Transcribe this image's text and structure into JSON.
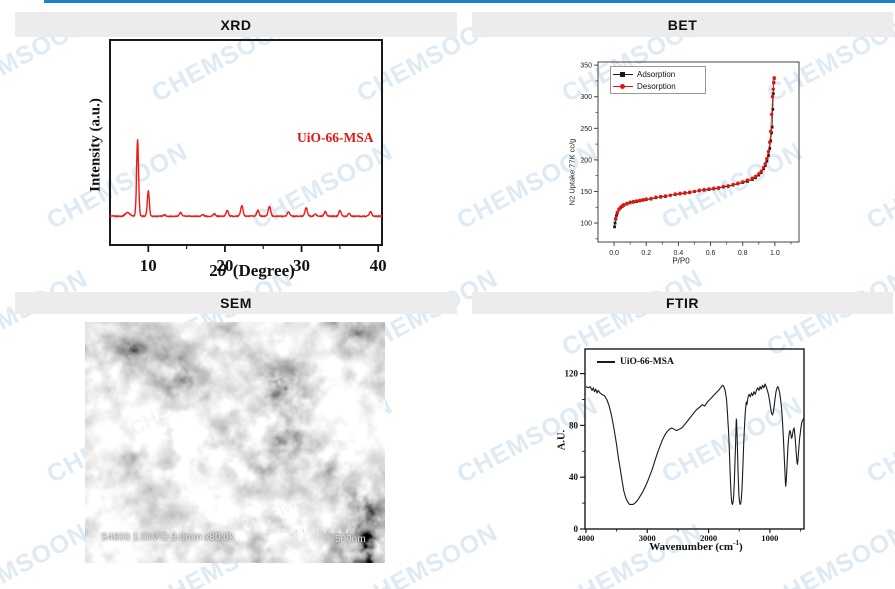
{
  "page": {
    "top_bar_color": "#1f83c2",
    "background": "#ffffff",
    "watermark": {
      "text": "CHEMSOON",
      "color": "rgba(62,132,190,0.17)"
    }
  },
  "panels": {
    "xrd": {
      "title": "XRD"
    },
    "bet": {
      "title": "BET"
    },
    "sem": {
      "title": "SEM",
      "info_label": "S4800 1.0kV-D 3.0mm x80.0k",
      "scale_label": "500nm"
    },
    "ftir": {
      "title": "FTIR"
    }
  },
  "chart_data": [
    {
      "id": "xrd",
      "type": "line",
      "title": "XRD",
      "sample_label": "UiO-66-MSA",
      "xlabel": "2θ (Degree)",
      "xlabel_parts": {
        "pre": "2",
        "theta": "θ",
        "post": "(Degree)"
      },
      "ylabel": "Intensity (a.u.)",
      "xlim": [
        5,
        40.5
      ],
      "xticks": [
        10,
        20,
        30,
        40
      ],
      "xticks_minor": [
        15,
        25,
        35
      ],
      "grid": false,
      "line_color": "#f41712",
      "label_color": "#e3170d",
      "peaks": [
        [
          7.3,
          0.05,
          0.3
        ],
        [
          8.6,
          1.0,
          0.13
        ],
        [
          10.0,
          0.33,
          0.13
        ],
        [
          12.1,
          0.02,
          0.15
        ],
        [
          14.2,
          0.05,
          0.15
        ],
        [
          17.1,
          0.02,
          0.15
        ],
        [
          18.6,
          0.03,
          0.15
        ],
        [
          20.3,
          0.08,
          0.15
        ],
        [
          22.2,
          0.14,
          0.16
        ],
        [
          24.3,
          0.08,
          0.15
        ],
        [
          25.8,
          0.13,
          0.16
        ],
        [
          28.3,
          0.06,
          0.15
        ],
        [
          30.6,
          0.11,
          0.16
        ],
        [
          31.8,
          0.03,
          0.14
        ],
        [
          33.1,
          0.06,
          0.15
        ],
        [
          35.0,
          0.08,
          0.15
        ],
        [
          36.2,
          0.04,
          0.14
        ],
        [
          39.0,
          0.06,
          0.16
        ]
      ]
    },
    {
      "id": "bet",
      "type": "scatter",
      "title": "BET",
      "xlabel": "P/P0",
      "ylabel": "N2 Uptake 77K cc/g",
      "xlim": [
        -0.1,
        1.15
      ],
      "ylim": [
        70,
        355
      ],
      "xticks": [
        "0.0",
        "0.2",
        "0.4",
        "0.6",
        "0.8",
        "1.0"
      ],
      "xticks_minor": [
        0.1,
        0.3,
        0.5,
        0.7,
        0.9,
        1.1
      ],
      "yticks": [
        100,
        150,
        200,
        250,
        300,
        350
      ],
      "yticks_minor": [
        75,
        125,
        175,
        225,
        275,
        325
      ],
      "legend_position": "top-left",
      "series": [
        {
          "name": "Adsorption",
          "marker": "square",
          "color": "#1a1a1a",
          "points": [
            [
              0.003,
              94
            ],
            [
              0.006,
              100
            ],
            [
              0.01,
              106
            ],
            [
              0.015,
              112
            ],
            [
              0.02,
              116
            ],
            [
              0.03,
              121
            ],
            [
              0.04,
              124
            ],
            [
              0.05,
              126
            ],
            [
              0.06,
              128
            ],
            [
              0.08,
              130
            ],
            [
              0.1,
              132
            ],
            [
              0.12,
              133
            ],
            [
              0.14,
              134
            ],
            [
              0.16,
              135
            ],
            [
              0.18,
              136
            ],
            [
              0.2,
              137
            ],
            [
              0.23,
              138
            ],
            [
              0.26,
              140
            ],
            [
              0.29,
              141
            ],
            [
              0.32,
              142
            ],
            [
              0.35,
              144
            ],
            [
              0.38,
              145
            ],
            [
              0.41,
              146
            ],
            [
              0.44,
              147
            ],
            [
              0.47,
              148
            ],
            [
              0.5,
              150
            ],
            [
              0.53,
              151
            ],
            [
              0.56,
              152
            ],
            [
              0.59,
              153
            ],
            [
              0.62,
              154
            ],
            [
              0.65,
              155
            ],
            [
              0.68,
              157
            ],
            [
              0.71,
              158
            ],
            [
              0.74,
              160
            ],
            [
              0.77,
              162
            ],
            [
              0.8,
              164
            ],
            [
              0.83,
              166
            ],
            [
              0.86,
              169
            ],
            [
              0.88,
              172
            ],
            [
              0.9,
              176
            ],
            [
              0.915,
              180
            ],
            [
              0.93,
              186
            ],
            [
              0.94,
              191
            ],
            [
              0.95,
              198
            ],
            [
              0.96,
              207
            ],
            [
              0.968,
              218
            ],
            [
              0.974,
              230
            ],
            [
              0.979,
              243
            ],
            [
              0.983,
              252
            ],
            [
              0.987,
              280
            ],
            [
              0.99,
              305
            ],
            [
              0.993,
              322
            ],
            [
              0.996,
              329
            ]
          ]
        },
        {
          "name": "Desorption",
          "marker": "circle",
          "color": "#e8140c",
          "points": [
            [
              0.996,
              330
            ],
            [
              0.993,
              323
            ],
            [
              0.99,
              312
            ],
            [
              0.985,
              300
            ],
            [
              0.98,
              272
            ],
            [
              0.974,
              245
            ],
            [
              0.968,
              228
            ],
            [
              0.96,
              213
            ],
            [
              0.95,
              202
            ],
            [
              0.94,
              194
            ],
            [
              0.93,
              188
            ],
            [
              0.915,
              182
            ],
            [
              0.9,
              178
            ],
            [
              0.88,
              174
            ],
            [
              0.86,
              171
            ],
            [
              0.83,
              168
            ],
            [
              0.8,
              165
            ],
            [
              0.77,
              163
            ],
            [
              0.74,
              161
            ],
            [
              0.71,
              159
            ],
            [
              0.68,
              158
            ],
            [
              0.65,
              156
            ],
            [
              0.62,
              155
            ],
            [
              0.59,
              154
            ],
            [
              0.56,
              153
            ],
            [
              0.53,
              152
            ],
            [
              0.5,
              150
            ],
            [
              0.47,
              149
            ],
            [
              0.44,
              148
            ],
            [
              0.41,
              147
            ],
            [
              0.38,
              146
            ],
            [
              0.35,
              144
            ],
            [
              0.32,
              143
            ],
            [
              0.29,
              142
            ],
            [
              0.26,
              141
            ],
            [
              0.23,
              139
            ],
            [
              0.2,
              138
            ],
            [
              0.18,
              137
            ],
            [
              0.16,
              136
            ],
            [
              0.14,
              135
            ],
            [
              0.12,
              134
            ],
            [
              0.1,
              133
            ],
            [
              0.08,
              131
            ],
            [
              0.06,
              129
            ],
            [
              0.05,
              127
            ],
            [
              0.04,
              125
            ],
            [
              0.03,
              122
            ],
            [
              0.02,
              117
            ],
            [
              0.01,
              107
            ]
          ]
        }
      ]
    },
    {
      "id": "ftir",
      "type": "line",
      "title": "FTIR",
      "legend": "UiO-66-MSA",
      "xlabel": "Wavenumber (cm-1)",
      "xlabel_parts": {
        "pre": "Wavenumber (cm",
        "sup": "-1",
        "post": ")"
      },
      "ylabel": "A.U.",
      "x_reversed": true,
      "xlim": [
        4015,
        444
      ],
      "ylim": [
        0,
        139
      ],
      "xticks": [
        4000,
        3000,
        2000,
        1000
      ],
      "xticks_minor": [
        3500,
        2500,
        1500,
        500
      ],
      "yticks": [
        0,
        40,
        80,
        120
      ],
      "yticks_minor": [
        20,
        60,
        100
      ],
      "line_color": "#1a1a1a",
      "points": [
        [
          4000,
          110
        ],
        [
          3960,
          109
        ],
        [
          3930,
          110
        ],
        [
          3900,
          107
        ],
        [
          3880,
          109
        ],
        [
          3860,
          106
        ],
        [
          3840,
          108
        ],
        [
          3820,
          105
        ],
        [
          3800,
          107
        ],
        [
          3770,
          105
        ],
        [
          3740,
          104
        ],
        [
          3700,
          103
        ],
        [
          3660,
          100
        ],
        [
          3620,
          95
        ],
        [
          3580,
          87
        ],
        [
          3540,
          77
        ],
        [
          3500,
          65
        ],
        [
          3470,
          55
        ],
        [
          3440,
          46
        ],
        [
          3410,
          37
        ],
        [
          3380,
          29
        ],
        [
          3350,
          24
        ],
        [
          3320,
          21
        ],
        [
          3290,
          19
        ],
        [
          3260,
          19
        ],
        [
          3230,
          19
        ],
        [
          3200,
          20
        ],
        [
          3160,
          22
        ],
        [
          3120,
          25
        ],
        [
          3080,
          28
        ],
        [
          3040,
          32
        ],
        [
          3000,
          36
        ],
        [
          2960,
          41
        ],
        [
          2920,
          46
        ],
        [
          2880,
          52
        ],
        [
          2840,
          58
        ],
        [
          2800,
          63
        ],
        [
          2760,
          68
        ],
        [
          2720,
          72
        ],
        [
          2680,
          75
        ],
        [
          2640,
          77
        ],
        [
          2600,
          78
        ],
        [
          2560,
          77
        ],
        [
          2520,
          76
        ],
        [
          2480,
          77
        ],
        [
          2440,
          78
        ],
        [
          2400,
          80
        ],
        [
          2350,
          83
        ],
        [
          2300,
          86
        ],
        [
          2250,
          89
        ],
        [
          2200,
          92
        ],
        [
          2150,
          94
        ],
        [
          2100,
          96
        ],
        [
          2060,
          95
        ],
        [
          2020,
          98
        ],
        [
          1980,
          100
        ],
        [
          1940,
          102
        ],
        [
          1900,
          104
        ],
        [
          1860,
          106
        ],
        [
          1820,
          108
        ],
        [
          1790,
          110
        ],
        [
          1770,
          111
        ],
        [
          1750,
          110
        ],
        [
          1730,
          107
        ],
        [
          1710,
          101
        ],
        [
          1700,
          95
        ],
        [
          1690,
          88
        ],
        [
          1685,
          83
        ],
        [
          1680,
          80
        ],
        [
          1670,
          72
        ],
        [
          1660,
          60
        ],
        [
          1650,
          46
        ],
        [
          1640,
          33
        ],
        [
          1630,
          24
        ],
        [
          1620,
          20
        ],
        [
          1610,
          19
        ],
        [
          1600,
          21
        ],
        [
          1590,
          26
        ],
        [
          1580,
          36
        ],
        [
          1570,
          50
        ],
        [
          1560,
          66
        ],
        [
          1553,
          78
        ],
        [
          1548,
          85
        ],
        [
          1543,
          83
        ],
        [
          1535,
          72
        ],
        [
          1525,
          55
        ],
        [
          1515,
          38
        ],
        [
          1505,
          26
        ],
        [
          1495,
          21
        ],
        [
          1485,
          19
        ],
        [
          1475,
          20
        ],
        [
          1465,
          24
        ],
        [
          1455,
          31
        ],
        [
          1445,
          42
        ],
        [
          1435,
          55
        ],
        [
          1425,
          68
        ],
        [
          1415,
          79
        ],
        [
          1405,
          88
        ],
        [
          1395,
          94
        ],
        [
          1385,
          98
        ],
        [
          1375,
          96
        ],
        [
          1365,
          99
        ],
        [
          1355,
          102
        ],
        [
          1340,
          104
        ],
        [
          1320,
          102
        ],
        [
          1300,
          105
        ],
        [
          1280,
          103
        ],
        [
          1260,
          106
        ],
        [
          1240,
          104
        ],
        [
          1220,
          107
        ],
        [
          1200,
          109
        ],
        [
          1180,
          107
        ],
        [
          1160,
          110
        ],
        [
          1140,
          108
        ],
        [
          1120,
          111
        ],
        [
          1100,
          109
        ],
        [
          1080,
          112
        ],
        [
          1060,
          110
        ],
        [
          1040,
          107
        ],
        [
          1020,
          103
        ],
        [
          1005,
          99
        ],
        [
          990,
          94
        ],
        [
          975,
          90
        ],
        [
          960,
          88
        ],
        [
          945,
          90
        ],
        [
          930,
          95
        ],
        [
          915,
          101
        ],
        [
          900,
          106
        ],
        [
          885,
          109
        ],
        [
          870,
          110
        ],
        [
          855,
          108
        ],
        [
          840,
          105
        ],
        [
          825,
          100
        ],
        [
          810,
          93
        ],
        [
          795,
          83
        ],
        [
          780,
          70
        ],
        [
          765,
          55
        ],
        [
          755,
          45
        ],
        [
          748,
          36
        ],
        [
          742,
          33
        ],
        [
          735,
          37
        ],
        [
          725,
          45
        ],
        [
          715,
          55
        ],
        [
          705,
          64
        ],
        [
          695,
          70
        ],
        [
          685,
          74
        ],
        [
          675,
          76
        ],
        [
          665,
          75
        ],
        [
          655,
          72
        ],
        [
          645,
          70
        ],
        [
          635,
          72
        ],
        [
          625,
          75
        ],
        [
          615,
          77
        ],
        [
          605,
          78
        ],
        [
          595,
          74
        ],
        [
          585,
          68
        ],
        [
          575,
          61
        ],
        [
          565,
          55
        ],
        [
          557,
          51
        ],
        [
          550,
          50
        ],
        [
          543,
          53
        ],
        [
          535,
          58
        ],
        [
          525,
          64
        ],
        [
          515,
          70
        ],
        [
          505,
          74
        ],
        [
          495,
          78
        ],
        [
          485,
          81
        ],
        [
          475,
          83
        ],
        [
          465,
          84
        ],
        [
          455,
          85
        ],
        [
          448,
          85
        ]
      ]
    }
  ]
}
